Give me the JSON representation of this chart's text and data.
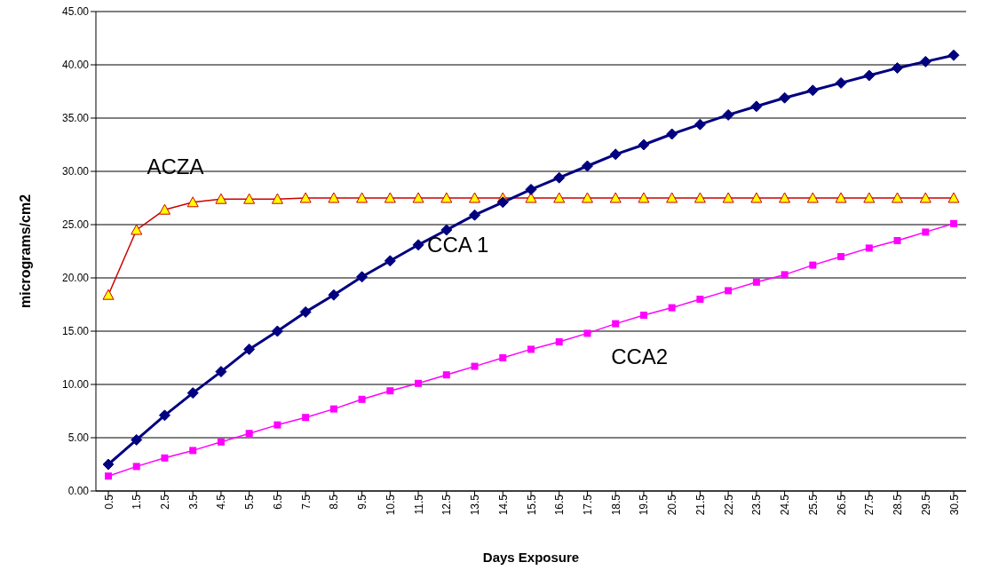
{
  "chart_data": {
    "type": "line",
    "xlabel": "Days Exposure",
    "ylabel": "micrograms/cm2",
    "categories": [
      "0.5",
      "1.5",
      "2.5",
      "3.5",
      "4.5",
      "5.5",
      "6.5",
      "7.5",
      "8.5",
      "9.5",
      "10.5",
      "11.5",
      "12.5",
      "13.5",
      "14.5",
      "15.5",
      "16.5",
      "17.5",
      "18.5",
      "19.5",
      "20.5",
      "21.5",
      "22.5",
      "23.5",
      "24.5",
      "25.5",
      "26.5",
      "27.5",
      "28.5",
      "29.5",
      "30.5"
    ],
    "series": [
      {
        "name": "CCA 1",
        "color": "#000080",
        "marker": "diamond",
        "values": [
          2.5,
          4.8,
          7.1,
          9.2,
          11.2,
          13.3,
          15.0,
          16.8,
          18.4,
          20.1,
          21.6,
          23.1,
          24.5,
          25.9,
          27.1,
          28.3,
          29.4,
          30.5,
          31.6,
          32.5,
          33.5,
          34.4,
          35.3,
          36.1,
          36.9,
          37.6,
          38.3,
          39.0,
          39.7,
          40.3,
          40.9
        ]
      },
      {
        "name": "ACZA",
        "color": "#cc0000",
        "marker": "triangle",
        "values": [
          18.4,
          24.5,
          26.4,
          27.1,
          27.4,
          27.4,
          27.4,
          27.5,
          27.5,
          27.5,
          27.5,
          27.5,
          27.5,
          27.5,
          27.5,
          27.5,
          27.5,
          27.5,
          27.5,
          27.5,
          27.5,
          27.5,
          27.5,
          27.5,
          27.5,
          27.5,
          27.5,
          27.5,
          27.5,
          27.5,
          27.5
        ]
      },
      {
        "name": "CCA2",
        "color": "#ff00ff",
        "marker": "square",
        "values": [
          1.4,
          2.3,
          3.1,
          3.8,
          4.6,
          5.4,
          6.2,
          6.9,
          7.7,
          8.6,
          9.4,
          10.1,
          10.9,
          11.7,
          12.5,
          13.3,
          14.0,
          14.8,
          15.7,
          16.5,
          17.2,
          18.0,
          18.8,
          19.6,
          20.3,
          21.2,
          22.0,
          22.8,
          23.5,
          24.3,
          25.1
        ]
      }
    ],
    "ylim": [
      0,
      45
    ],
    "yticks": [
      {
        "value": 0,
        "label": "0.00"
      },
      {
        "value": 5,
        "label": "5.00"
      },
      {
        "value": 10,
        "label": "10.00"
      },
      {
        "value": 15,
        "label": "15.00"
      },
      {
        "value": 20,
        "label": "20.00"
      },
      {
        "value": 25,
        "label": "25.00"
      },
      {
        "value": 30,
        "label": "30.00"
      },
      {
        "value": 35,
        "label": "35.00"
      },
      {
        "value": 40,
        "label": "40.00"
      },
      {
        "value": 45,
        "label": "45.00"
      }
    ],
    "grid": "y",
    "legend": false,
    "line_style": "solid"
  }
}
